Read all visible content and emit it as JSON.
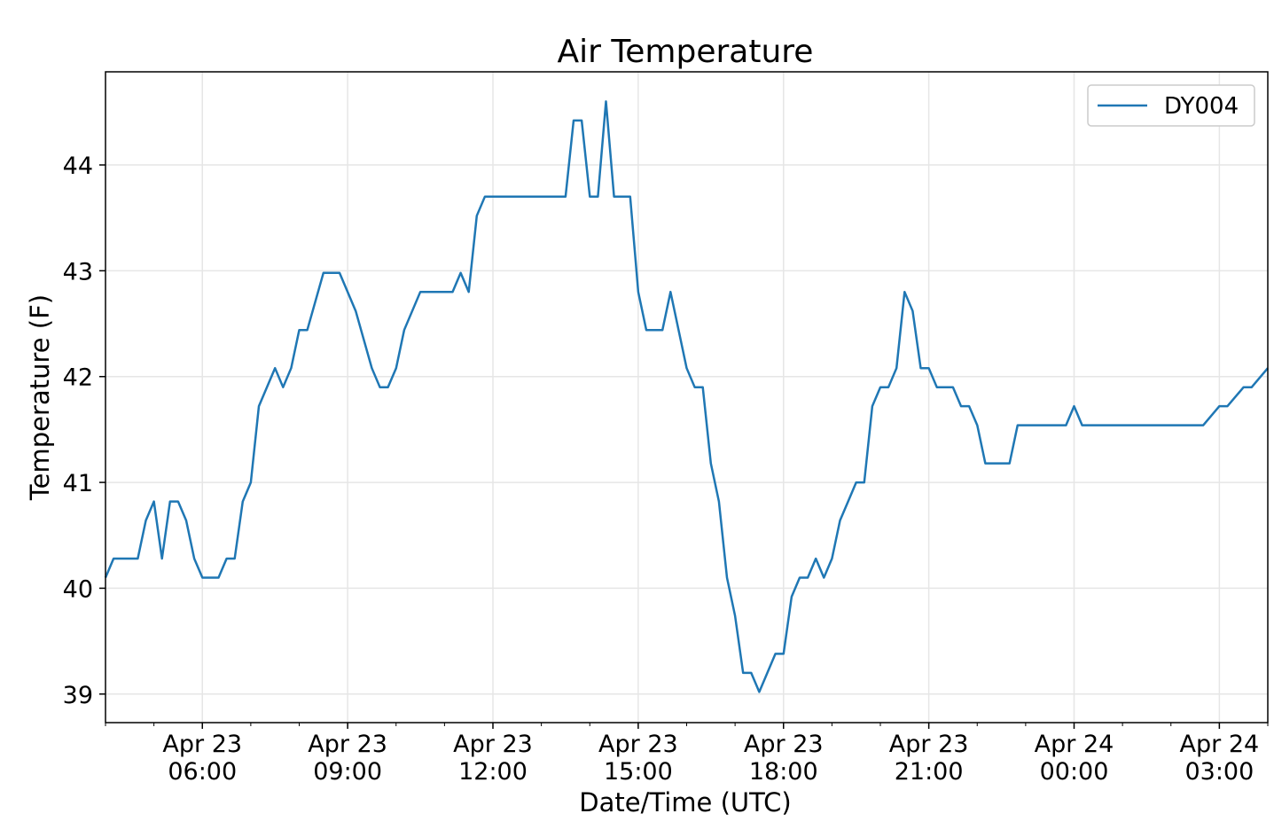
{
  "chart_data": {
    "type": "line",
    "title": "Air Temperature",
    "xlabel": "Date/Time (UTC)",
    "ylabel": "Temperature (F)",
    "ylim": [
      38.73,
      44.88
    ],
    "xlim": [
      "2019-04-23T04:00",
      "2019-04-24T04:00"
    ],
    "grid": true,
    "legend_position": "top-right",
    "y_ticks": [
      39,
      40,
      41,
      42,
      43,
      44
    ],
    "y_tick_labels": [
      "39",
      "40",
      "41",
      "42",
      "43",
      "44"
    ],
    "x_ticks": [
      {
        "t": "2019-04-23T06:00",
        "line1": "Apr 23",
        "line2": "06:00"
      },
      {
        "t": "2019-04-23T09:00",
        "line1": "Apr 23",
        "line2": "09:00"
      },
      {
        "t": "2019-04-23T12:00",
        "line1": "Apr 23",
        "line2": "12:00"
      },
      {
        "t": "2019-04-23T15:00",
        "line1": "Apr 23",
        "line2": "15:00"
      },
      {
        "t": "2019-04-23T18:00",
        "line1": "Apr 23",
        "line2": "18:00"
      },
      {
        "t": "2019-04-23T21:00",
        "line1": "Apr 23",
        "line2": "21:00"
      },
      {
        "t": "2019-04-24T00:00",
        "line1": "Apr 24",
        "line2": "00:00"
      },
      {
        "t": "2019-04-24T03:00",
        "line1": "Apr 24",
        "line2": "03:00"
      }
    ],
    "series": [
      {
        "name": "DY004",
        "color": "#1f77b4",
        "x": [
          "2019-04-23T04:00",
          "2019-04-23T04:10",
          "2019-04-23T04:40",
          "2019-04-23T04:50",
          "2019-04-23T05:00",
          "2019-04-23T05:10",
          "2019-04-23T05:20",
          "2019-04-23T05:30",
          "2019-04-23T05:40",
          "2019-04-23T05:50",
          "2019-04-23T06:00",
          "2019-04-23T06:20",
          "2019-04-23T06:30",
          "2019-04-23T06:40",
          "2019-04-23T06:50",
          "2019-04-23T07:00",
          "2019-04-23T07:10",
          "2019-04-23T07:30",
          "2019-04-23T07:40",
          "2019-04-23T07:50",
          "2019-04-23T08:00",
          "2019-04-23T08:10",
          "2019-04-23T08:30",
          "2019-04-23T08:50",
          "2019-04-23T09:10",
          "2019-04-23T09:30",
          "2019-04-23T09:40",
          "2019-04-23T09:50",
          "2019-04-23T10:00",
          "2019-04-23T10:10",
          "2019-04-23T10:30",
          "2019-04-23T10:50",
          "2019-04-23T11:10",
          "2019-04-23T11:20",
          "2019-04-23T11:30",
          "2019-04-23T11:40",
          "2019-04-23T11:50",
          "2019-04-23T12:00",
          "2019-04-23T13:30",
          "2019-04-23T13:40",
          "2019-04-23T13:50",
          "2019-04-23T14:00",
          "2019-04-23T14:10",
          "2019-04-23T14:20",
          "2019-04-23T14:30",
          "2019-04-23T14:50",
          "2019-04-23T15:00",
          "2019-04-23T15:10",
          "2019-04-23T15:30",
          "2019-04-23T15:40",
          "2019-04-23T15:50",
          "2019-04-23T16:00",
          "2019-04-23T16:10",
          "2019-04-23T16:20",
          "2019-04-23T16:30",
          "2019-04-23T16:40",
          "2019-04-23T16:50",
          "2019-04-23T17:00",
          "2019-04-23T17:10",
          "2019-04-23T17:20",
          "2019-04-23T17:30",
          "2019-04-23T17:40",
          "2019-04-23T17:50",
          "2019-04-23T18:00",
          "2019-04-23T18:10",
          "2019-04-23T18:20",
          "2019-04-23T18:30",
          "2019-04-23T18:40",
          "2019-04-23T18:50",
          "2019-04-23T19:00",
          "2019-04-23T19:10",
          "2019-04-23T19:20",
          "2019-04-23T19:30",
          "2019-04-23T19:40",
          "2019-04-23T19:50",
          "2019-04-23T20:00",
          "2019-04-23T20:10",
          "2019-04-23T20:20",
          "2019-04-23T20:30",
          "2019-04-23T20:40",
          "2019-04-23T20:50",
          "2019-04-23T21:00",
          "2019-04-23T21:10",
          "2019-04-23T21:30",
          "2019-04-23T21:40",
          "2019-04-23T21:50",
          "2019-04-23T22:00",
          "2019-04-23T22:10",
          "2019-04-23T22:40",
          "2019-04-23T22:50",
          "2019-04-23T23:50",
          "2019-04-24T00:00",
          "2019-04-24T00:10",
          "2019-04-24T02:30",
          "2019-04-24T02:40",
          "2019-04-24T03:00",
          "2019-04-24T03:10",
          "2019-04-24T03:30",
          "2019-04-24T03:40",
          "2019-04-24T04:00"
        ],
        "y": [
          40.1,
          40.28,
          40.28,
          40.64,
          40.82,
          40.28,
          40.82,
          40.82,
          40.64,
          40.28,
          40.1,
          40.1,
          40.28,
          40.28,
          40.82,
          41.0,
          41.72,
          42.08,
          41.9,
          42.08,
          42.44,
          42.44,
          42.98,
          42.98,
          42.62,
          42.08,
          41.9,
          41.9,
          42.08,
          42.44,
          42.8,
          42.8,
          42.8,
          42.98,
          42.8,
          43.52,
          43.7,
          43.7,
          43.7,
          44.42,
          44.42,
          43.7,
          43.7,
          44.6,
          43.7,
          43.7,
          42.8,
          42.44,
          42.44,
          42.8,
          42.44,
          42.08,
          41.9,
          41.9,
          41.18,
          40.82,
          40.1,
          39.74,
          39.2,
          39.2,
          39.02,
          39.2,
          39.38,
          39.38,
          39.92,
          40.1,
          40.1,
          40.28,
          40.1,
          40.28,
          40.64,
          40.82,
          41.0,
          41.0,
          41.72,
          41.9,
          41.9,
          42.08,
          42.8,
          42.62,
          42.08,
          42.08,
          41.9,
          41.9,
          41.72,
          41.72,
          41.54,
          41.18,
          41.18,
          41.54,
          41.54,
          41.72,
          41.54,
          41.54,
          41.54,
          41.72,
          41.72,
          41.9,
          41.9,
          42.08
        ]
      }
    ]
  }
}
